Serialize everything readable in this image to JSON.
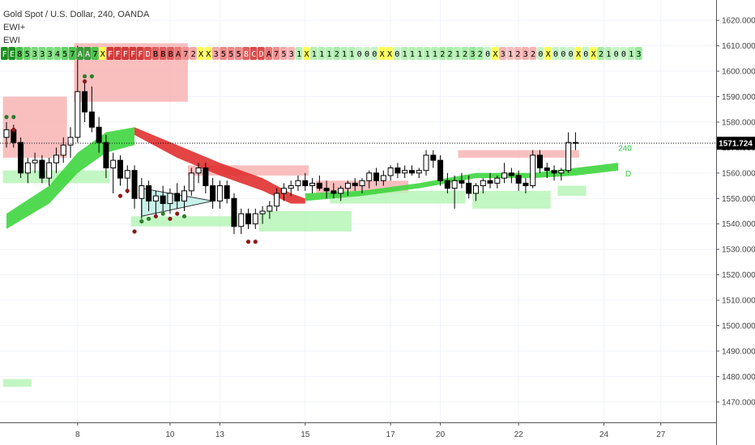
{
  "legend": {
    "symbol_line": "Gold Spot / U.S. Dollar, 240, OANDA",
    "indicator1": "EWI+",
    "indicator2": "EWI"
  },
  "price_badge": "1571.724",
  "colors": {
    "up_candle": "#ffffff",
    "down_candle": "#000000",
    "bull_ribbon": "#3ed63e",
    "bear_ribbon": "#e03030",
    "supply_zone": "#f8b4b4",
    "demand_zone": "#b7f5b7",
    "badge_bg": "#000000",
    "grid": "#f0f3fa"
  },
  "code_strip": {
    "codes": [
      "F",
      "E",
      "8",
      "5",
      "3",
      "3",
      "3",
      "4",
      "5",
      "7",
      "A",
      "A",
      "7",
      "X",
      "F",
      "F",
      "F",
      "F",
      "F",
      "D",
      "B",
      "B",
      "B",
      "A",
      "7",
      "2",
      "X",
      "X",
      "3",
      "5",
      "5",
      "5",
      "8",
      "C",
      "D",
      "A",
      "7",
      "5",
      "3",
      "1",
      "X",
      "1",
      "1",
      "1",
      "2",
      "1",
      "1",
      "0",
      "0",
      "0",
      "X",
      "X",
      "0",
      "1",
      "1",
      "1",
      "1",
      "1",
      "2",
      "2",
      "1",
      "2",
      "3",
      "2",
      "0",
      "X",
      "3",
      "1",
      "2",
      "3",
      "2",
      "0",
      "X",
      "0",
      "0",
      "0",
      "X",
      "0",
      "X",
      "2",
      "1",
      "0",
      "0",
      "1",
      "3"
    ],
    "background_colors": [
      "#1f8f1f",
      "#1f8f1f",
      "#4cc24c",
      "#66d166",
      "#7fdb7f",
      "#7fdb7f",
      "#7fdb7f",
      "#7fdb7f",
      "#66d166",
      "#4cc24c",
      "#3a9a3a",
      "#3a9a3a",
      "#4cc24c",
      "#ffff55",
      "#d13a3a",
      "#d13a3a",
      "#d13a3a",
      "#d13a3a",
      "#d13a3a",
      "#d94c4c",
      "#e06060",
      "#e06060",
      "#e06060",
      "#e87777",
      "#f09090",
      "#f5a8a8",
      "#ffff55",
      "#ffff55",
      "#f5a8a8",
      "#ee8888",
      "#ee8888",
      "#ee8888",
      "#e06060",
      "#d94c4c",
      "#d94c4c",
      "#e87777",
      "#f09090",
      "#f5a8a8",
      "#f5b5b5",
      "#b5f0b5",
      "#ffff55",
      "#b5f0b5",
      "#b5f0b5",
      "#b5f0b5",
      "#a8eda8",
      "#b5f0b5",
      "#b5f0b5",
      "#c8f5c8",
      "#c8f5c8",
      "#c8f5c8",
      "#ffff55",
      "#ffff55",
      "#c8f5c8",
      "#b5f0b5",
      "#b5f0b5",
      "#b5f0b5",
      "#b5f0b5",
      "#b5f0b5",
      "#a8eda8",
      "#a8eda8",
      "#b5f0b5",
      "#a8eda8",
      "#9ae99a",
      "#a8eda8",
      "#c8f5c8",
      "#ffff55",
      "#f5b5b5",
      "#f5c0c0",
      "#f5b5b5",
      "#f5b0b0",
      "#f5b5b5",
      "#c8f5c8",
      "#ffff55",
      "#c8f5c8",
      "#c8f5c8",
      "#c8f5c8",
      "#ffff55",
      "#c8f5c8",
      "#ffff55",
      "#a8eda8",
      "#b5f0b5",
      "#c8f5c8",
      "#c8f5c8",
      "#b5f0b5",
      "#9ae99a"
    ],
    "text_colors": [
      "#ffffff",
      "#ffffff",
      "#000000",
      "#000000",
      "#000000",
      "#000000",
      "#000000",
      "#000000",
      "#000000",
      "#000000",
      "#ffffff",
      "#ffffff",
      "#000000",
      "#000000",
      "#ffffff",
      "#ffffff",
      "#ffffff",
      "#ffffff",
      "#ffffff",
      "#ffffff",
      "#000000",
      "#000000",
      "#000000",
      "#000000",
      "#000000",
      "#000000",
      "#000000",
      "#000000",
      "#000000",
      "#000000",
      "#000000",
      "#000000",
      "#ffffff",
      "#ffffff",
      "#ffffff",
      "#000000",
      "#000000",
      "#000000",
      "#000000",
      "#000000",
      "#000000",
      "#000000",
      "#000000",
      "#000000",
      "#000000",
      "#000000",
      "#000000",
      "#000000",
      "#000000",
      "#000000",
      "#000000",
      "#000000",
      "#000000",
      "#000000",
      "#000000",
      "#000000",
      "#000000",
      "#000000",
      "#000000",
      "#000000",
      "#000000",
      "#000000",
      "#000000",
      "#000000",
      "#000000",
      "#000000",
      "#000000",
      "#000000",
      "#000000",
      "#000000",
      "#000000",
      "#000000",
      "#000000",
      "#000000",
      "#000000",
      "#000000",
      "#000000",
      "#000000",
      "#000000",
      "#000000",
      "#000000",
      "#000000",
      "#000000",
      "#000000",
      "#000000"
    ]
  },
  "chart_data": {
    "type": "candlestick",
    "title": "Gold Spot / U.S. Dollar, 240, OANDA",
    "timeframe": "240",
    "ylim": [
      1462,
      1628
    ],
    "y_ticks": [
      1620,
      1610,
      1600,
      1590,
      1580,
      1570,
      1560,
      1550,
      1540,
      1530,
      1520,
      1510,
      1500,
      1490,
      1480,
      1470
    ],
    "y_tick_labels": [
      "1620.000",
      "1610.000",
      "1600.000",
      "1590.000",
      "1580.000",
      "1570.000",
      "1560.000",
      "1550.000",
      "1540.000",
      "1530.000",
      "1520.000",
      "1510.000",
      "1500.000",
      "1490.000",
      "1480.000",
      "1470.000"
    ],
    "x_ticks": [
      {
        "label": "8",
        "bar": 10
      },
      {
        "label": "10",
        "bar": 23
      },
      {
        "label": "13",
        "bar": 30
      },
      {
        "label": "15",
        "bar": 42
      },
      {
        "label": "17",
        "bar": 54
      },
      {
        "label": "20",
        "bar": 61
      },
      {
        "label": "22",
        "bar": 72
      },
      {
        "label": "24",
        "bar": 84
      },
      {
        "label": "27",
        "bar": 92
      }
    ],
    "last_price": 1571.724,
    "candles": [
      {
        "o": 1574,
        "h": 1580,
        "l": 1570,
        "c": 1577
      },
      {
        "o": 1577,
        "h": 1579,
        "l": 1570,
        "c": 1572
      },
      {
        "o": 1572,
        "h": 1574,
        "l": 1558,
        "c": 1560
      },
      {
        "o": 1560,
        "h": 1566,
        "l": 1556,
        "c": 1564
      },
      {
        "o": 1564,
        "h": 1568,
        "l": 1560,
        "c": 1565
      },
      {
        "o": 1565,
        "h": 1567,
        "l": 1556,
        "c": 1558
      },
      {
        "o": 1558,
        "h": 1566,
        "l": 1555,
        "c": 1564
      },
      {
        "o": 1564,
        "h": 1570,
        "l": 1560,
        "c": 1567
      },
      {
        "o": 1567,
        "h": 1574,
        "l": 1564,
        "c": 1571
      },
      {
        "o": 1571,
        "h": 1578,
        "l": 1566,
        "c": 1574
      },
      {
        "o": 1574,
        "h": 1610,
        "l": 1572,
        "c": 1592
      },
      {
        "o": 1592,
        "h": 1596,
        "l": 1580,
        "c": 1584
      },
      {
        "o": 1584,
        "h": 1594,
        "l": 1576,
        "c": 1578
      },
      {
        "o": 1578,
        "h": 1582,
        "l": 1568,
        "c": 1572
      },
      {
        "o": 1572,
        "h": 1575,
        "l": 1558,
        "c": 1562
      },
      {
        "o": 1562,
        "h": 1568,
        "l": 1552,
        "c": 1565
      },
      {
        "o": 1565,
        "h": 1567,
        "l": 1555,
        "c": 1558
      },
      {
        "o": 1558,
        "h": 1563,
        "l": 1552,
        "c": 1561
      },
      {
        "o": 1561,
        "h": 1563,
        "l": 1546,
        "c": 1550
      },
      {
        "o": 1550,
        "h": 1558,
        "l": 1542,
        "c": 1555
      },
      {
        "o": 1555,
        "h": 1557,
        "l": 1545,
        "c": 1549
      },
      {
        "o": 1549,
        "h": 1553,
        "l": 1543,
        "c": 1551
      },
      {
        "o": 1551,
        "h": 1555,
        "l": 1545,
        "c": 1548
      },
      {
        "o": 1548,
        "h": 1554,
        "l": 1544,
        "c": 1552
      },
      {
        "o": 1552,
        "h": 1556,
        "l": 1546,
        "c": 1549
      },
      {
        "o": 1549,
        "h": 1555,
        "l": 1545,
        "c": 1553
      },
      {
        "o": 1553,
        "h": 1562,
        "l": 1551,
        "c": 1560
      },
      {
        "o": 1560,
        "h": 1564,
        "l": 1556,
        "c": 1562
      },
      {
        "o": 1562,
        "h": 1564,
        "l": 1552,
        "c": 1555
      },
      {
        "o": 1555,
        "h": 1558,
        "l": 1546,
        "c": 1549
      },
      {
        "o": 1549,
        "h": 1557,
        "l": 1546,
        "c": 1555
      },
      {
        "o": 1555,
        "h": 1557,
        "l": 1548,
        "c": 1550
      },
      {
        "o": 1550,
        "h": 1552,
        "l": 1536,
        "c": 1539
      },
      {
        "o": 1539,
        "h": 1546,
        "l": 1536,
        "c": 1544
      },
      {
        "o": 1544,
        "h": 1546,
        "l": 1538,
        "c": 1540
      },
      {
        "o": 1540,
        "h": 1546,
        "l": 1538,
        "c": 1544
      },
      {
        "o": 1544,
        "h": 1547,
        "l": 1540,
        "c": 1545
      },
      {
        "o": 1545,
        "h": 1549,
        "l": 1542,
        "c": 1547
      },
      {
        "o": 1547,
        "h": 1554,
        "l": 1545,
        "c": 1552
      },
      {
        "o": 1552,
        "h": 1556,
        "l": 1549,
        "c": 1554
      },
      {
        "o": 1554,
        "h": 1557,
        "l": 1551,
        "c": 1555
      },
      {
        "o": 1555,
        "h": 1559,
        "l": 1553,
        "c": 1557
      },
      {
        "o": 1557,
        "h": 1560,
        "l": 1553,
        "c": 1555
      },
      {
        "o": 1555,
        "h": 1558,
        "l": 1552,
        "c": 1556
      },
      {
        "o": 1556,
        "h": 1559,
        "l": 1553,
        "c": 1554
      },
      {
        "o": 1554,
        "h": 1557,
        "l": 1550,
        "c": 1553
      },
      {
        "o": 1553,
        "h": 1556,
        "l": 1550,
        "c": 1552
      },
      {
        "o": 1552,
        "h": 1555,
        "l": 1549,
        "c": 1554
      },
      {
        "o": 1554,
        "h": 1557,
        "l": 1551,
        "c": 1556
      },
      {
        "o": 1556,
        "h": 1558,
        "l": 1553,
        "c": 1555
      },
      {
        "o": 1555,
        "h": 1558,
        "l": 1552,
        "c": 1557
      },
      {
        "o": 1557,
        "h": 1561,
        "l": 1554,
        "c": 1560
      },
      {
        "o": 1560,
        "h": 1562,
        "l": 1555,
        "c": 1557
      },
      {
        "o": 1557,
        "h": 1561,
        "l": 1555,
        "c": 1559
      },
      {
        "o": 1559,
        "h": 1563,
        "l": 1557,
        "c": 1562
      },
      {
        "o": 1562,
        "h": 1564,
        "l": 1558,
        "c": 1560
      },
      {
        "o": 1560,
        "h": 1563,
        "l": 1558,
        "c": 1561
      },
      {
        "o": 1561,
        "h": 1563,
        "l": 1559,
        "c": 1560
      },
      {
        "o": 1560,
        "h": 1562,
        "l": 1558,
        "c": 1561
      },
      {
        "o": 1561,
        "h": 1569,
        "l": 1559,
        "c": 1567
      },
      {
        "o": 1567,
        "h": 1569,
        "l": 1562,
        "c": 1565
      },
      {
        "o": 1565,
        "h": 1567,
        "l": 1555,
        "c": 1557
      },
      {
        "o": 1557,
        "h": 1560,
        "l": 1552,
        "c": 1554
      },
      {
        "o": 1554,
        "h": 1559,
        "l": 1546,
        "c": 1557
      },
      {
        "o": 1557,
        "h": 1560,
        "l": 1554,
        "c": 1556
      },
      {
        "o": 1556,
        "h": 1559,
        "l": 1550,
        "c": 1552
      },
      {
        "o": 1552,
        "h": 1556,
        "l": 1549,
        "c": 1555
      },
      {
        "o": 1555,
        "h": 1558,
        "l": 1552,
        "c": 1557
      },
      {
        "o": 1557,
        "h": 1560,
        "l": 1554,
        "c": 1556
      },
      {
        "o": 1556,
        "h": 1559,
        "l": 1554,
        "c": 1558
      },
      {
        "o": 1558,
        "h": 1564,
        "l": 1556,
        "c": 1560
      },
      {
        "o": 1560,
        "h": 1562,
        "l": 1556,
        "c": 1559
      },
      {
        "o": 1559,
        "h": 1561,
        "l": 1553,
        "c": 1556
      },
      {
        "o": 1556,
        "h": 1558,
        "l": 1552,
        "c": 1555
      },
      {
        "o": 1555,
        "h": 1569,
        "l": 1554,
        "c": 1567
      },
      {
        "o": 1567,
        "h": 1569,
        "l": 1560,
        "c": 1562
      },
      {
        "o": 1562,
        "h": 1564,
        "l": 1558,
        "c": 1561
      },
      {
        "o": 1561,
        "h": 1563,
        "l": 1557,
        "c": 1560
      },
      {
        "o": 1560,
        "h": 1562,
        "l": 1557,
        "c": 1561
      },
      {
        "o": 1561,
        "h": 1576,
        "l": 1560,
        "c": 1572
      },
      {
        "o": 1572,
        "h": 1576,
        "l": 1569,
        "c": 1572
      }
    ],
    "ribbons": [
      {
        "name": "",
        "color_key": "bull_ribbon",
        "upper": [
          [
            0,
            1544
          ],
          [
            6,
            1555
          ],
          [
            10,
            1568
          ],
          [
            14,
            1576
          ],
          [
            18,
            1578
          ]
        ],
        "lower": [
          [
            0,
            1538
          ],
          [
            6,
            1548
          ],
          [
            10,
            1560
          ],
          [
            14,
            1568
          ],
          [
            18,
            1571
          ]
        ]
      },
      {
        "name": "",
        "color_key": "bear_ribbon",
        "upper": [
          [
            18,
            1578
          ],
          [
            24,
            1571
          ],
          [
            30,
            1564
          ],
          [
            36,
            1558
          ],
          [
            40,
            1552
          ],
          [
            42,
            1550
          ]
        ],
        "lower": [
          [
            18,
            1575
          ],
          [
            24,
            1566
          ],
          [
            30,
            1559
          ],
          [
            36,
            1553
          ],
          [
            40,
            1548
          ],
          [
            42,
            1548
          ]
        ]
      },
      {
        "name": "",
        "color_key": "bull_ribbon",
        "upper": [
          [
            42,
            1552
          ],
          [
            50,
            1553
          ],
          [
            58,
            1556
          ],
          [
            66,
            1560
          ],
          [
            74,
            1560
          ],
          [
            80,
            1562
          ],
          [
            86,
            1564
          ]
        ],
        "lower": [
          [
            42,
            1549
          ],
          [
            50,
            1551
          ],
          [
            58,
            1554
          ],
          [
            66,
            1558
          ],
          [
            74,
            1558
          ],
          [
            80,
            1559
          ],
          [
            86,
            1561
          ]
        ]
      }
    ],
    "zones": [
      {
        "type": "supply",
        "x0": 0,
        "x1": 8,
        "y_top": 1590,
        "y_bottom": 1566
      },
      {
        "type": "supply",
        "x0": 10,
        "x1": 25,
        "y_top": 1611,
        "y_bottom": 1588
      },
      {
        "type": "supply",
        "x0": 26,
        "x1": 42,
        "y_top": 1563,
        "y_bottom": 1559
      },
      {
        "type": "supply",
        "x0": 44,
        "x1": 56,
        "y_top": 1557,
        "y_bottom": 1552
      },
      {
        "type": "supply",
        "x0": 64,
        "x1": 80,
        "y_top": 1569,
        "y_bottom": 1566
      },
      {
        "type": "demand",
        "x0": 0,
        "x1": 14,
        "y_top": 1561,
        "y_bottom": 1556
      },
      {
        "type": "demand",
        "x0": 18,
        "x1": 32,
        "y_top": 1543,
        "y_bottom": 1539
      },
      {
        "type": "demand",
        "x0": 36,
        "x1": 48,
        "y_top": 1545,
        "y_bottom": 1537
      },
      {
        "type": "demand",
        "x0": 46,
        "x1": 64,
        "y_top": 1553,
        "y_bottom": 1548
      },
      {
        "type": "demand",
        "x0": 66,
        "x1": 76,
        "y_top": 1553,
        "y_bottom": 1546
      },
      {
        "type": "demand",
        "x0": 78,
        "x1": 81,
        "y_top": 1555,
        "y_bottom": 1551
      },
      {
        "type": "demand",
        "x0": 0,
        "x1": 3,
        "y_top": 1479,
        "y_bottom": 1476
      }
    ],
    "triangle": {
      "points": [
        [
          19,
          1554
        ],
        [
          29,
          1549
        ],
        [
          19,
          1543
        ]
      ]
    },
    "dots": [
      {
        "bar": 0,
        "price": 1582,
        "color": "#2e7d2e"
      },
      {
        "bar": 1,
        "price": 1582,
        "color": "#2e7d2e"
      },
      {
        "bar": 1,
        "price": 1577,
        "color": "#8b1a1a"
      },
      {
        "bar": 11,
        "price": 1598,
        "color": "#2e7d2e"
      },
      {
        "bar": 12,
        "price": 1598,
        "color": "#2e7d2e"
      },
      {
        "bar": 11,
        "price": 1596,
        "color": "#8b1a1a"
      },
      {
        "bar": 16,
        "price": 1551,
        "color": "#8b1a1a"
      },
      {
        "bar": 17,
        "price": 1553,
        "color": "#8b1a1a"
      },
      {
        "bar": 18,
        "price": 1537,
        "color": "#8b1a1a"
      },
      {
        "bar": 19,
        "price": 1541,
        "color": "#2e7d2e"
      },
      {
        "bar": 20,
        "price": 1542,
        "color": "#2e7d2e"
      },
      {
        "bar": 21,
        "price": 1543,
        "color": "#8b1a1a"
      },
      {
        "bar": 22,
        "price": 1544,
        "color": "#2e7d2e"
      },
      {
        "bar": 23,
        "price": 1542,
        "color": "#8b1a1a"
      },
      {
        "bar": 24,
        "price": 1544,
        "color": "#8b1a1a"
      },
      {
        "bar": 25,
        "price": 1543,
        "color": "#2e7d2e"
      },
      {
        "bar": 34,
        "price": 1533,
        "color": "#8b1a1a"
      },
      {
        "bar": 35,
        "price": 1533,
        "color": "#8b1a1a"
      }
    ],
    "annotations": [
      {
        "text": "240",
        "bar": 86,
        "price": 1570,
        "color": "#2ecc40"
      },
      {
        "text": "D",
        "bar": 87,
        "price": 1560,
        "color": "#2ecc40"
      }
    ]
  }
}
